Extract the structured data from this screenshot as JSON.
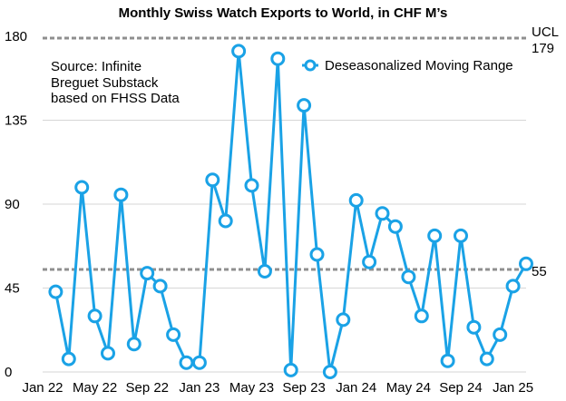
{
  "chart_data": {
    "type": "line",
    "title": "Monthly Swiss Watch Exports to World, in CHF M’s",
    "annotation": [
      "Source: Infinite",
      "Breguet Substack",
      "based on FHSS Data"
    ],
    "xlabel": "",
    "ylabel": "",
    "ylim": [
      0,
      180
    ],
    "yticks": [
      0,
      45,
      90,
      135,
      180
    ],
    "grid": true,
    "legend_position": "top-right",
    "x_tick_labels": [
      "Jan 22",
      "May 22",
      "Sep 22",
      "Jan 23",
      "May 23",
      "Sep 23",
      "Jan 24",
      "May 24",
      "Sep 24",
      "Jan 25"
    ],
    "x_tick_index": [
      0,
      4,
      8,
      12,
      16,
      20,
      24,
      28,
      32,
      36
    ],
    "categories": [
      "Feb 22",
      "Mar 22",
      "Apr 22",
      "May 22",
      "Jun 22",
      "Jul 22",
      "Aug 22",
      "Sep 22",
      "Oct 22",
      "Nov 22",
      "Dec 22",
      "Jan 23",
      "Feb 23",
      "Mar 23",
      "Apr 23",
      "May 23",
      "Jun 23",
      "Jul 23",
      "Aug 23",
      "Sep 23",
      "Oct 23",
      "Nov 23",
      "Dec 23",
      "Jan 24",
      "Feb 24",
      "Mar 24",
      "Apr 24",
      "May 24",
      "Jun 24",
      "Jul 24",
      "Aug 24",
      "Sep 24",
      "Oct 24",
      "Nov 24",
      "Dec 24",
      "Jan 25",
      "Feb 25"
    ],
    "series": [
      {
        "name": "Deseasonalized Moving Range",
        "color": "#1aa2e6",
        "x_index": [
          1,
          2,
          3,
          4,
          5,
          6,
          7,
          8,
          9,
          10,
          11,
          12,
          13,
          14,
          15,
          16,
          17,
          18,
          19,
          20,
          21,
          22,
          23,
          24,
          25,
          26,
          27,
          28,
          29,
          30,
          31,
          32,
          33,
          34,
          35,
          36,
          37
        ],
        "values": [
          43,
          7,
          99,
          30,
          10,
          95,
          15,
          53,
          46,
          20,
          5,
          5,
          103,
          81,
          172,
          100,
          54,
          168,
          1,
          143,
          63,
          0,
          28,
          92,
          59,
          85,
          78,
          51,
          30,
          73,
          6,
          73,
          24,
          7,
          20,
          46,
          58
        ]
      }
    ],
    "reference_lines": [
      {
        "label": [
          "UCL",
          "179"
        ],
        "value": 179
      },
      {
        "label": [
          "55"
        ],
        "value": 55
      }
    ]
  }
}
